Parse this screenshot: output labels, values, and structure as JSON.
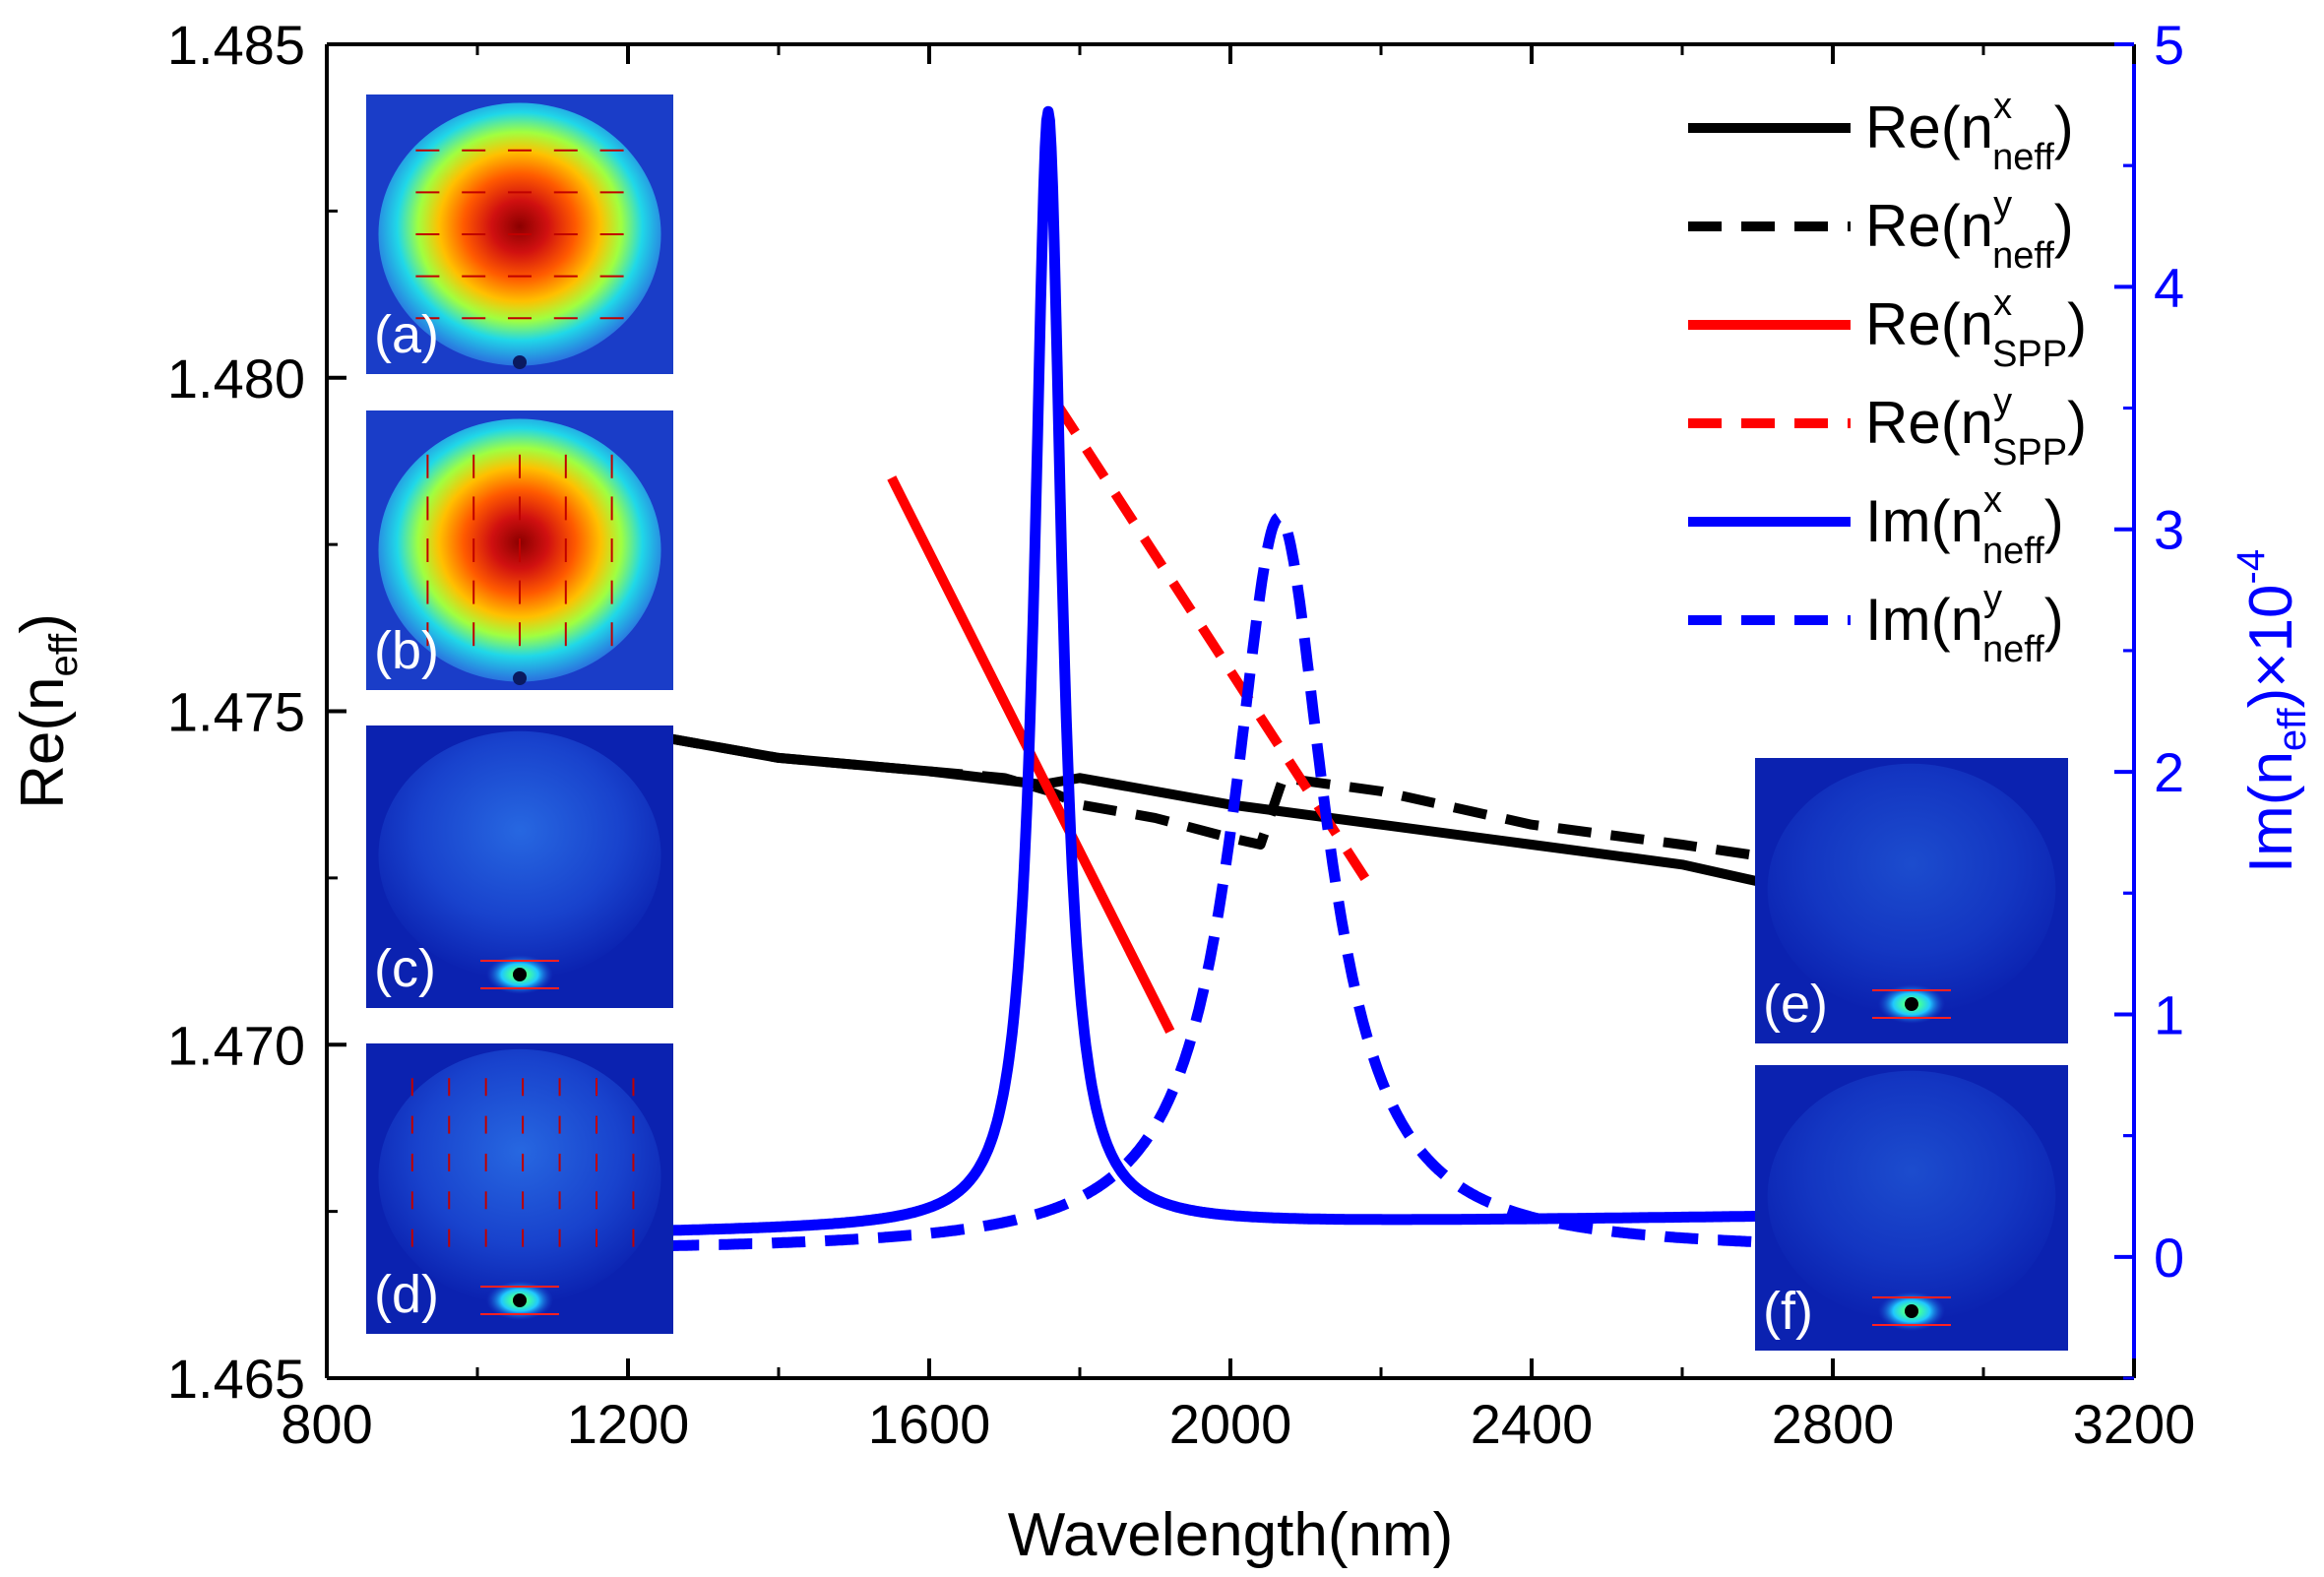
{
  "chart_data": {
    "type": "line",
    "xlabel": "Wavelength(nm)",
    "ylabel_left": {
      "main": "Re(n",
      "sub": "eff",
      "close": ")"
    },
    "ylabel_right": {
      "main": "Im(n",
      "sub": "eff",
      "close": ")×10",
      "sup": "-4"
    },
    "xlim": [
      800,
      3200
    ],
    "ylim_left": [
      1.465,
      1.485
    ],
    "ylim_right": [
      -0.5,
      5
    ],
    "x_ticks": [
      "800",
      "1200",
      "1600",
      "2000",
      "2400",
      "2800",
      "3200"
    ],
    "y_left_ticks": [
      "1.465",
      "1.470",
      "1.475",
      "1.480",
      "1.485"
    ],
    "y_right_ticks": [
      "0",
      "1",
      "2",
      "3",
      "4",
      "5"
    ],
    "colors": {
      "black": "#000000",
      "red": "#ff0000",
      "blue": "#0000ff",
      "axis_right": "#0000ff"
    },
    "series": [
      {
        "key": "re_x_neff",
        "axis": "left",
        "color": "#000000",
        "dash": false,
        "legend": {
          "main": "Re(n",
          "sup": "x",
          "sub": "neff",
          "close": ")"
        },
        "x": [
          1250,
          1400,
          1600,
          1750,
          1800,
          2000,
          2200,
          2400,
          2600,
          2720
        ],
        "y": [
          1.4746,
          1.4743,
          1.4741,
          1.4739,
          1.474,
          1.4736,
          1.4733,
          1.473,
          1.4727,
          1.4724
        ]
      },
      {
        "key": "re_y_neff",
        "axis": "left",
        "color": "#000000",
        "dash": true,
        "legend": {
          "main": "Re(n",
          "sup": "y",
          "sub": "neff",
          "close": ")"
        },
        "x": [
          1250,
          1400,
          1600,
          1700,
          1760,
          1800,
          1900,
          2000,
          2040,
          2070,
          2200,
          2280,
          2400,
          2600,
          2720
        ],
        "y": [
          1.4746,
          1.4743,
          1.4741,
          1.474,
          1.4738,
          1.4736,
          1.4734,
          1.4731,
          1.473,
          1.474,
          1.4738,
          1.4736,
          1.4733,
          1.473,
          1.4728
        ]
      },
      {
        "key": "re_x_spp",
        "axis": "left",
        "color": "#ff0000",
        "dash": false,
        "legend": {
          "main": "Re(n",
          "sup": "x",
          "sub": "SPP",
          "close": ")"
        },
        "x": [
          1550,
          1920
        ],
        "y": [
          1.4785,
          1.4702
        ]
      },
      {
        "key": "re_y_spp",
        "axis": "left",
        "color": "#ff0000",
        "dash": true,
        "legend": {
          "main": "Re(n",
          "sup": "y",
          "sub": "SPP",
          "close": ")"
        },
        "x": [
          1770,
          2190
        ],
        "y": [
          1.4796,
          1.4723
        ]
      },
      {
        "key": "im_x_neff",
        "axis": "right",
        "color": "#0000ff",
        "dash": false,
        "legend": {
          "main": "Im(n",
          "sup": "x",
          "sub": "neff",
          "close": ")"
        },
        "peak": {
          "x0": 1758,
          "height": 4.7,
          "gamma": 22,
          "base": 0.1,
          "slope": 4.5e-05
        },
        "x_range": [
          1250,
          2720
        ]
      },
      {
        "key": "im_y_neff",
        "axis": "right",
        "color": "#0000ff",
        "dash": true,
        "legend": {
          "main": "Im(n",
          "sup": "y",
          "sub": "neff",
          "close": ")"
        },
        "peak": {
          "x0": 2065,
          "height": 3.05,
          "gamma": 75,
          "base": 0.02,
          "slope": 0.0
        },
        "x_range": [
          1250,
          2720
        ]
      }
    ],
    "insets": [
      {
        "label": "(a)",
        "mode": "core"
      },
      {
        "label": "(b)",
        "mode": "core"
      },
      {
        "label": "(c)",
        "mode": "spp"
      },
      {
        "label": "(d)",
        "mode": "spp"
      },
      {
        "label": "(e)",
        "mode": "spp"
      },
      {
        "label": "(f)",
        "mode": "spp"
      }
    ]
  }
}
